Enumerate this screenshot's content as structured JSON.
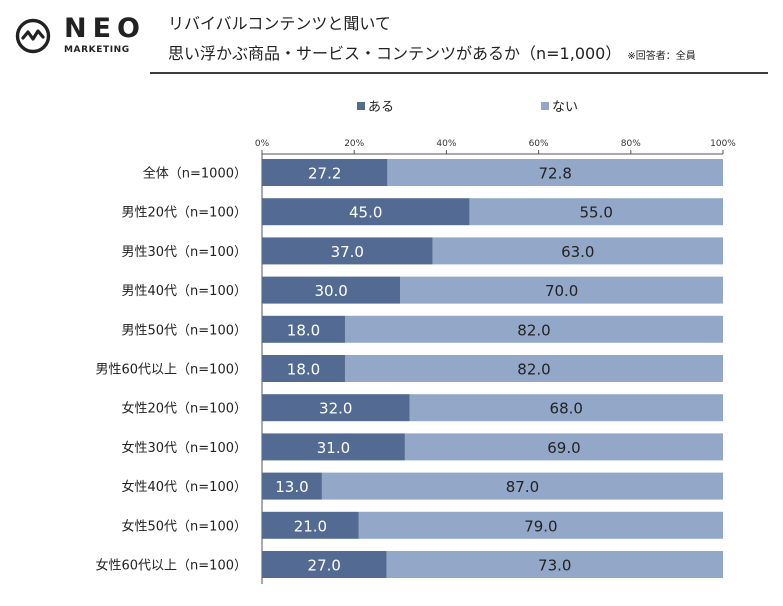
{
  "header": {
    "logo_main": "NEO",
    "logo_sub": "MARKETING",
    "title_line1": "リバイバルコンテンツと聞いて",
    "title_line2": "思い浮かぶ商品・サービス・コンテンツがあるか（n=1,000）",
    "note": "※回答者：全員"
  },
  "colors": {
    "aru": "#536b92",
    "nai": "#93a8c8",
    "rule": "#3c3c3c"
  },
  "chart_data": {
    "type": "bar",
    "orientation": "horizontal",
    "stacked": true,
    "percent_axis": true,
    "xlim": [
      0,
      100
    ],
    "x_ticks": [
      "0%",
      "20%",
      "40%",
      "60%",
      "80%",
      "100%"
    ],
    "legend": [
      "ある",
      "ない"
    ],
    "legend_position": "top",
    "categories": [
      "全体（n=1000）",
      "男性20代（n=100）",
      "男性30代（n=100）",
      "男性40代（n=100）",
      "男性50代（n=100）",
      "男性60代以上（n=100）",
      "女性20代（n=100）",
      "女性30代（n=100）",
      "女性40代（n=100）",
      "女性50代（n=100）",
      "女性60代以上（n=100）"
    ],
    "series": [
      {
        "name": "ある",
        "values": [
          27.2,
          45.0,
          37.0,
          30.0,
          18.0,
          18.0,
          32.0,
          31.0,
          13.0,
          21.0,
          27.0
        ]
      },
      {
        "name": "ない",
        "values": [
          72.8,
          55.0,
          63.0,
          70.0,
          82.0,
          82.0,
          68.0,
          69.0,
          87.0,
          79.0,
          73.0
        ]
      }
    ]
  }
}
